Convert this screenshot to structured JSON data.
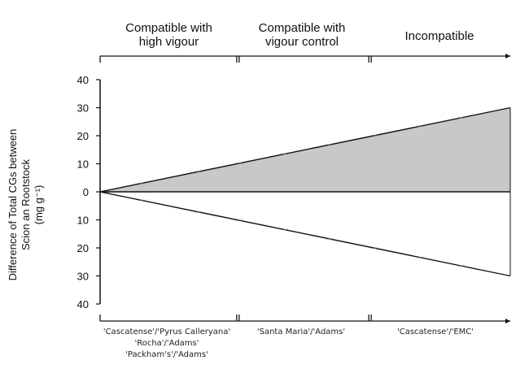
{
  "chart_data": {
    "type": "area",
    "ylabel_line1": "Difference of Total CGs between",
    "ylabel_line2": "Scion an Rootstock",
    "ylabel_line3": "(mg g⁻¹)",
    "y_tick_labels": [
      "40",
      "30",
      "20",
      "10",
      "0",
      "10",
      "20",
      "30",
      "40"
    ],
    "y_tick_values": [
      40,
      30,
      20,
      10,
      0,
      -10,
      -20,
      -30,
      -40
    ],
    "ylim": [
      -40,
      40
    ],
    "x": [
      0,
      1
    ],
    "series": [
      {
        "values": [
          0,
          30
        ],
        "fill": "#c8c8c8"
      },
      {
        "values": [
          0,
          -30
        ],
        "fill": "#ffffff"
      }
    ],
    "groups": [
      {
        "label_line1": "Compatible with",
        "label_line2": "high vigour",
        "range": [
          0,
          0.333
        ]
      },
      {
        "label_line1": "Compatible with",
        "label_line2": "vigour control",
        "range": [
          0.333,
          0.655
        ]
      },
      {
        "label_line1": "Incompatible",
        "label_line2": "",
        "range": [
          0.655,
          1
        ]
      }
    ],
    "bottom_labels": [
      {
        "lines": [
          "'Cascatense'/'Pyrus Calleryana'",
          "'Rocha'/'Adams'",
          "'Packham's'/'Adams'"
        ]
      },
      {
        "lines": [
          "'Santa Maria'/'Adams'"
        ]
      },
      {
        "lines": [
          "'Cascatense'/'EMC'"
        ]
      }
    ]
  }
}
